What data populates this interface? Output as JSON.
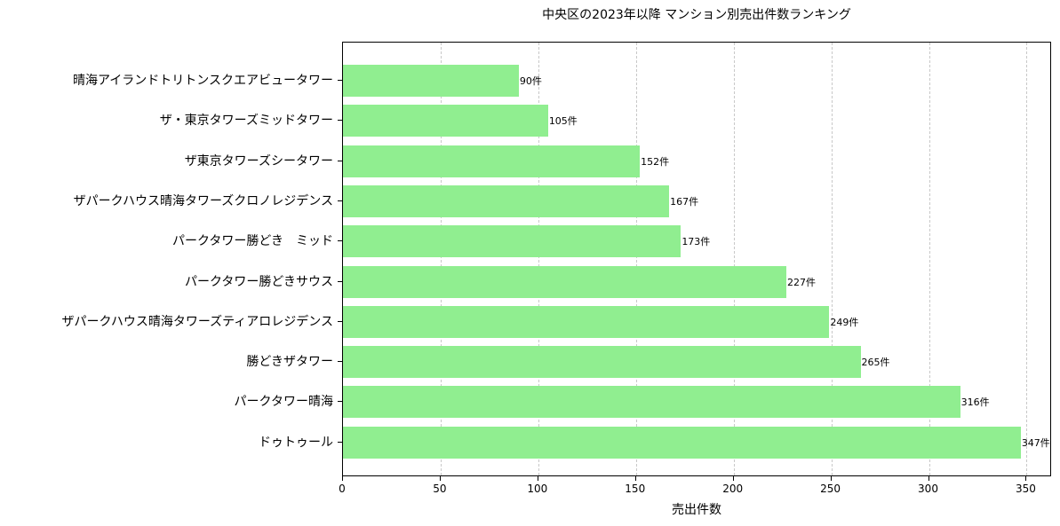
{
  "chart_data": {
    "type": "bar",
    "orientation": "horizontal",
    "title": "中央区の2023年以降 マンション別売出件数ランキング",
    "xlabel": "売出件数",
    "ylabel": "",
    "xlim": [
      0,
      363
    ],
    "xticks": [
      0,
      50,
      100,
      150,
      200,
      250,
      300,
      350
    ],
    "grid": "x, dashed",
    "bar_color": "#90ee90",
    "categories": [
      "晴海アイランドトリトンスクエアビュータワー",
      "ザ・東京タワーズミッドタワー",
      "ザ東京タワーズシータワー",
      "ザパークハウス晴海タワーズクロノレジデンス",
      "パークタワー勝どき　ミッド",
      "パークタワー勝どきサウス",
      "ザパークハウス晴海タワーズティアロレジデンス",
      "勝どきザタワー",
      "パークタワー晴海",
      "ドゥトゥール"
    ],
    "values": [
      90,
      105,
      152,
      167,
      173,
      227,
      249,
      265,
      316,
      347
    ],
    "value_labels": [
      "90件",
      "105件",
      "152件",
      "167件",
      "173件",
      "227件",
      "249件",
      "265件",
      "316件",
      "347件"
    ]
  }
}
